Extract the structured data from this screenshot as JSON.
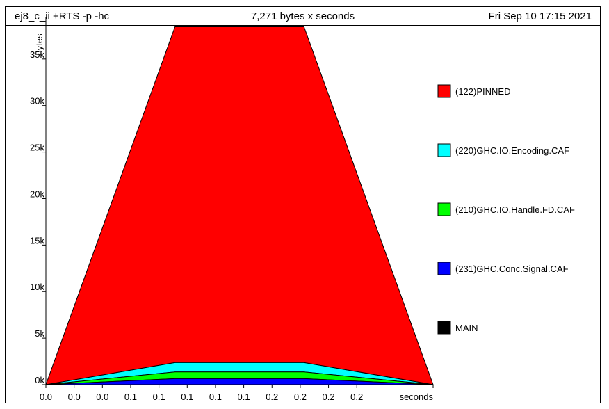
{
  "header": {
    "program": "ej8_c_ii +RTS -p -hc",
    "total": "7,271 bytes x seconds",
    "date": "Fri Sep 10 17:15 2021"
  },
  "chart_data": {
    "type": "area",
    "stacked": true,
    "ylabel": "bytes",
    "xlabel": "seconds",
    "x": [
      0.0,
      0.1,
      0.2,
      0.3
    ],
    "ylim": [
      0,
      38500
    ],
    "yticks": [
      0,
      5000,
      10000,
      15000,
      20000,
      25000,
      30000,
      35000
    ],
    "ytick_labels": [
      "0k",
      "5k",
      "10k",
      "15k",
      "20k",
      "25k",
      "30k",
      "35k"
    ],
    "xtick_labels": [
      "0.0",
      "0.0",
      "0.0",
      "0.1",
      "0.1",
      "0.1",
      "0.1",
      "0.1",
      "0.2",
      "0.2",
      "0.2",
      "0.2"
    ],
    "series": [
      {
        "name": "MAIN",
        "color": "#000000",
        "values": [
          0,
          0,
          0,
          0
        ]
      },
      {
        "name": "(231)GHC.Conc.Signal.CAF",
        "color": "#0000ff",
        "values": [
          0,
          640,
          640,
          0
        ]
      },
      {
        "name": "(210)GHC.IO.Handle.FD.CAF",
        "color": "#00ff00",
        "values": [
          0,
          720,
          720,
          0
        ]
      },
      {
        "name": "(220)GHC.IO.Encoding.CAF",
        "color": "#00ffff",
        "values": [
          0,
          1000,
          1000,
          0
        ]
      },
      {
        "name": "(122)PINNED",
        "color": "#ff0000",
        "values": [
          0,
          36100,
          36100,
          0
        ]
      }
    ],
    "legend_position": "right"
  }
}
